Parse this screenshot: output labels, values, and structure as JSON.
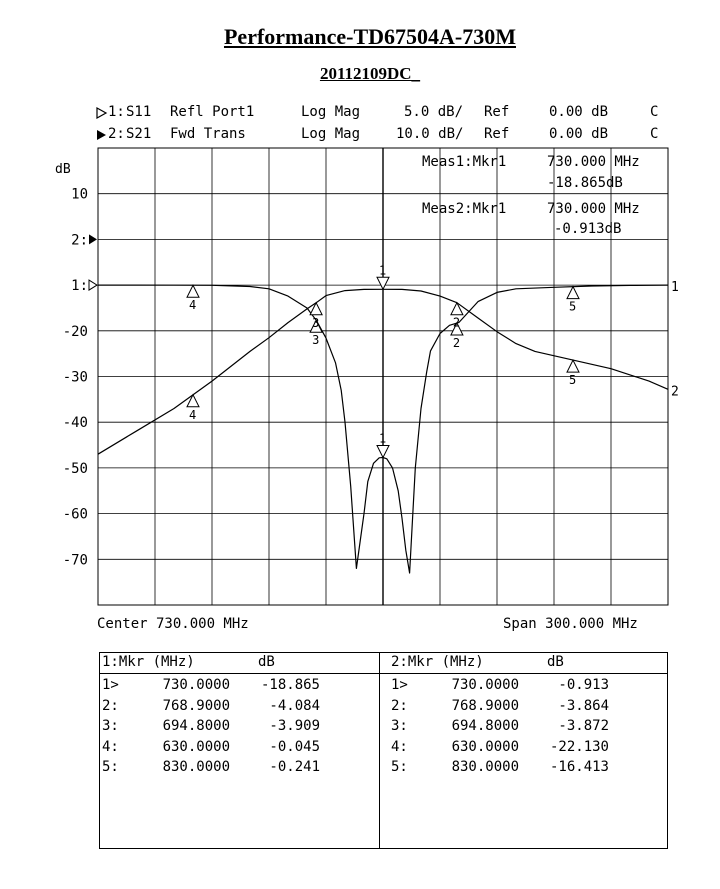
{
  "header": {
    "title": "Performance-TD67504A-730M",
    "subtitle": "20112109DC_"
  },
  "channels": [
    {
      "id": "1:",
      "param": "S11",
      "desc": "Refl Port1",
      "format": "Log Mag",
      "scale": "5.0 dB/",
      "ref": "Ref",
      "ref_value": "0.00 dB",
      "flag": "C"
    },
    {
      "id": "2:",
      "param": "S21",
      "desc": "Fwd Trans",
      "format": "Log Mag",
      "scale": "10.0 dB/",
      "ref": "Ref",
      "ref_value": "0.00 dB",
      "flag": "C"
    }
  ],
  "meas": [
    {
      "label": "Meas1:Mkr1",
      "freq": "730.000 MHz",
      "value": "-18.865dB"
    },
    {
      "label": "Meas2:Mkr1",
      "freq": "730.000 MHz",
      "value": "-0.913dB"
    }
  ],
  "chart_data": {
    "type": "line",
    "y_unit_label": "dB",
    "y_ticks": [
      "10",
      "2:",
      "1:",
      "-20",
      "-30",
      "-40",
      "-50",
      "-60",
      "-70"
    ],
    "center_label": "Center 730.000 MHz",
    "span_label": "Span 300.000 MHz",
    "xlim": [
      580,
      880
    ],
    "grid": true,
    "series": [
      {
        "name": "1",
        "param": "S11",
        "scale_db_per_div": 5,
        "x": [
          580,
          600,
          620,
          640,
          660,
          670,
          680,
          690,
          695,
          700,
          705,
          708,
          710,
          713,
          716,
          718,
          720,
          722,
          725,
          728,
          730,
          732,
          735,
          738,
          740,
          742,
          744,
          747,
          750,
          753,
          755,
          760,
          765,
          770,
          780,
          790,
          800,
          820,
          840,
          860,
          880
        ],
        "values": [
          0,
          0,
          -0.01,
          -0.02,
          -0.15,
          -0.4,
          -1.2,
          -2.5,
          -3.9,
          -5.8,
          -8.5,
          -11.5,
          -15,
          -22,
          -31,
          -28,
          -25,
          -21.5,
          -19.5,
          -18.9,
          -18.865,
          -19,
          -20,
          -22.5,
          -25.5,
          -29,
          -31.5,
          -20,
          -13.5,
          -9.5,
          -7.2,
          -5.3,
          -4.4,
          -4.08,
          -1.8,
          -0.8,
          -0.4,
          -0.24,
          -0.1,
          -0.03,
          0
        ],
        "markers": [
          {
            "n": "1",
            "x": 730.0,
            "y": -18.865
          },
          {
            "n": "2",
            "x": 768.9,
            "y": -4.084
          },
          {
            "n": "3",
            "x": 694.8,
            "y": -3.909
          },
          {
            "n": "4",
            "x": 630.0,
            "y": -0.045
          },
          {
            "n": "5",
            "x": 830.0,
            "y": -0.241
          }
        ]
      },
      {
        "name": "2",
        "param": "S21",
        "scale_db_per_div": 10,
        "x": [
          580,
          600,
          620,
          640,
          660,
          670,
          680,
          690,
          694.8,
          700,
          710,
          720,
          730,
          740,
          750,
          760,
          768.9,
          780,
          790,
          800,
          810,
          830,
          850,
          870,
          880
        ],
        "values": [
          -37,
          -32,
          -27,
          -21,
          -14.5,
          -11.5,
          -8.2,
          -5.2,
          -3.87,
          -2.3,
          -1.2,
          -0.95,
          -0.913,
          -0.95,
          -1.3,
          -2.4,
          -3.86,
          -7.2,
          -10.2,
          -12.8,
          -14.5,
          -16.41,
          -18.3,
          -21,
          -22.8
        ],
        "markers": [
          {
            "n": "1",
            "x": 730.0,
            "y": -0.913
          },
          {
            "n": "2",
            "x": 768.9,
            "y": -3.864
          },
          {
            "n": "3",
            "x": 694.8,
            "y": -3.872
          },
          {
            "n": "4",
            "x": 630.0,
            "y": -22.13
          },
          {
            "n": "5",
            "x": 830.0,
            "y": -16.413
          }
        ]
      }
    ]
  },
  "marker_table": {
    "left": {
      "title": "1:Mkr (MHz)",
      "unit": "dB",
      "rows": [
        {
          "idx": "1>",
          "freq": "730.0000",
          "value": "-18.865"
        },
        {
          "idx": "2:",
          "freq": "768.9000",
          "value": "-4.084"
        },
        {
          "idx": "3:",
          "freq": "694.8000",
          "value": "-3.909"
        },
        {
          "idx": "4:",
          "freq": "630.0000",
          "value": "-0.045"
        },
        {
          "idx": "5:",
          "freq": "830.0000",
          "value": "-0.241"
        }
      ]
    },
    "right": {
      "title": "2:Mkr (MHz)",
      "unit": "dB",
      "rows": [
        {
          "idx": "1>",
          "freq": "730.0000",
          "value": "-0.913"
        },
        {
          "idx": "2:",
          "freq": "768.9000",
          "value": "-3.864"
        },
        {
          "idx": "3:",
          "freq": "694.8000",
          "value": "-3.872"
        },
        {
          "idx": "4:",
          "freq": "630.0000",
          "value": "-22.130"
        },
        {
          "idx": "5:",
          "freq": "830.0000",
          "value": "-16.413"
        }
      ]
    }
  }
}
